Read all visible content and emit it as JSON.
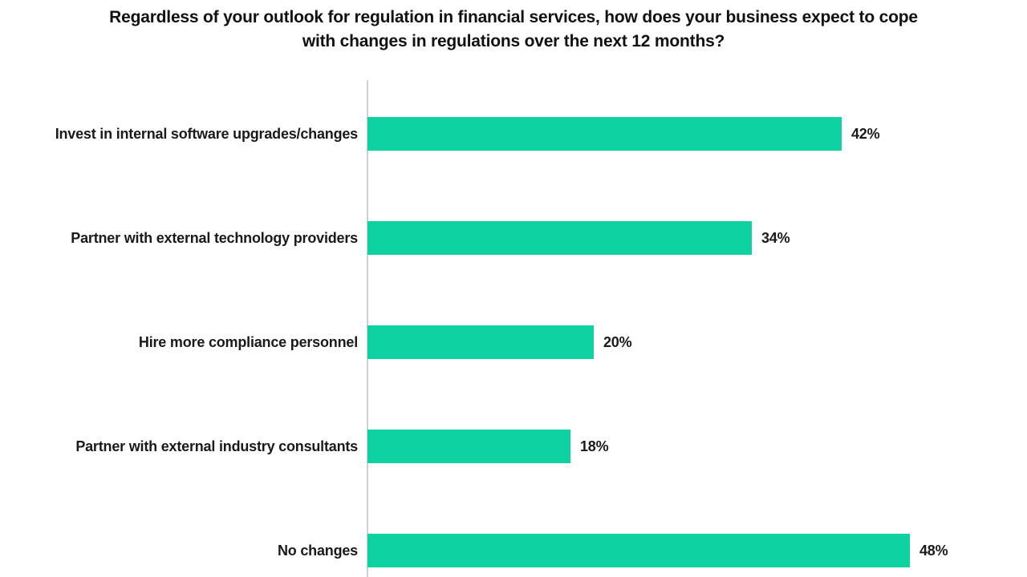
{
  "header": {
    "title_line1": "Regardless of your outlook for regulation in financial services, how does your business expect to cope",
    "title_line2": "with changes in regulations over the next 12 months?"
  },
  "colors": {
    "bar": "#0dd1a0",
    "title_text": "#111111",
    "label_text": "#1a1a1a",
    "axis_line": "#cfcfcf",
    "background": "#ffffff"
  },
  "chart_data": {
    "type": "bar",
    "orientation": "horizontal",
    "title": "Regardless of your outlook for regulation in financial services, how does your business expect to cope with changes in regulations over the next 12 months?",
    "categories": [
      "Invest in internal software upgrades/changes",
      "Partner with external technology providers",
      "Hire more compliance personnel",
      "Partner with external industry consultants",
      "No changes"
    ],
    "values": [
      42,
      34,
      20,
      18,
      48
    ],
    "value_labels": [
      "42%",
      "34%",
      "20%",
      "18%",
      "48%"
    ],
    "xlabel": "",
    "ylabel": "",
    "xlim_visible": [
      0,
      58
    ],
    "grid": false,
    "legend": false,
    "data_labels": "outside-end",
    "bar_color_name": "mint-green"
  }
}
